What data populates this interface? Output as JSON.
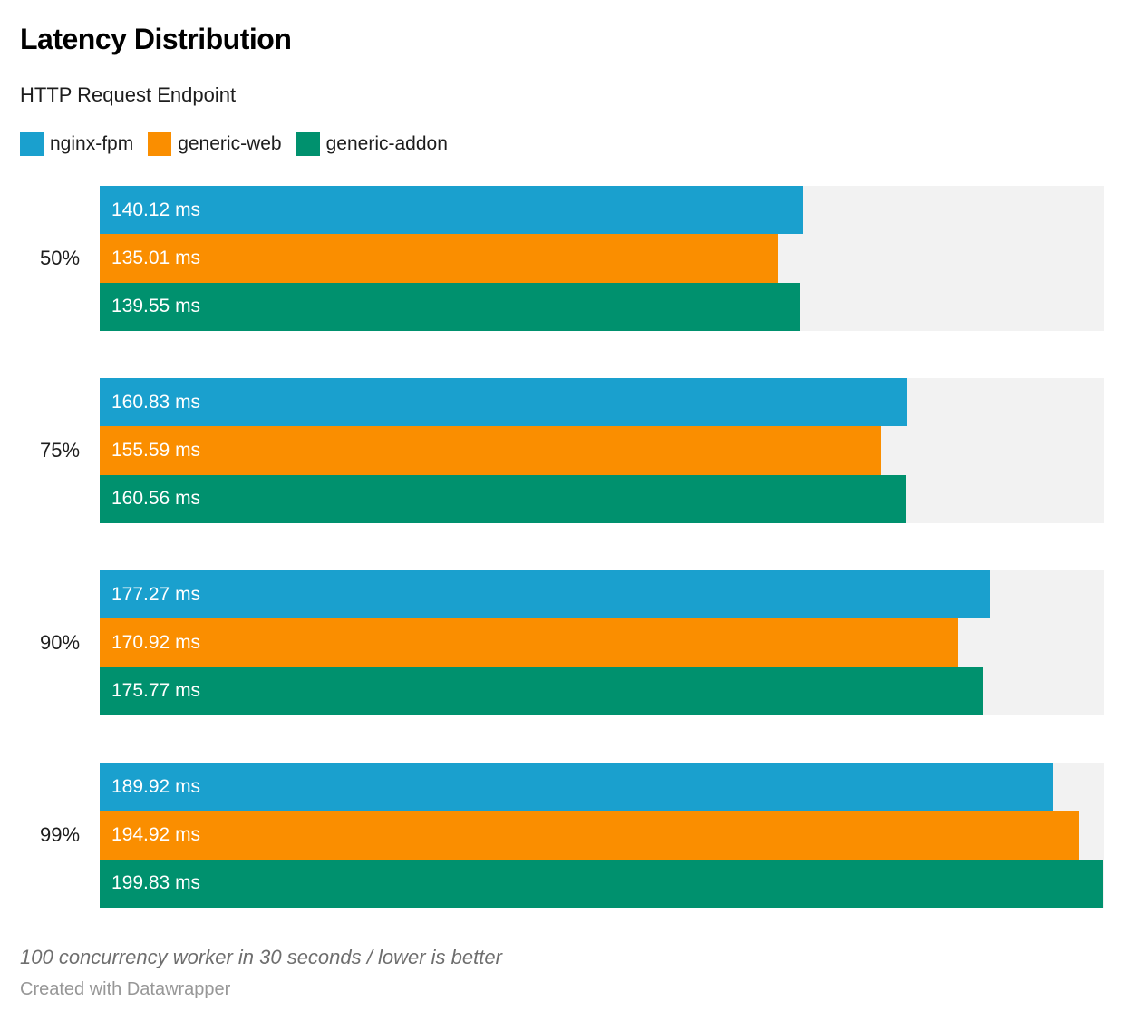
{
  "header": {
    "title": "Latency Distribution",
    "subtitle": "HTTP Request Endpoint"
  },
  "legend": {
    "items": [
      {
        "label": "nginx-fpm",
        "color": "#1aa0ce"
      },
      {
        "label": "generic-web",
        "color": "#fa8e00"
      },
      {
        "label": "generic-addon",
        "color": "#00916e"
      }
    ]
  },
  "chart_data": {
    "type": "bar",
    "orientation": "horizontal",
    "title": "Latency Distribution",
    "subtitle": "HTTP Request Endpoint",
    "unit": "ms",
    "value_axis": {
      "min": 0,
      "max": 200
    },
    "grid": false,
    "legend_position": "top",
    "track_color": "#f2f2f2",
    "categories": [
      "50%",
      "75%",
      "90%",
      "99%"
    ],
    "series": [
      {
        "name": "nginx-fpm",
        "color": "#1aa0ce",
        "values": [
          140.12,
          160.83,
          177.27,
          189.92
        ]
      },
      {
        "name": "generic-web",
        "color": "#fa8e00",
        "values": [
          135.01,
          155.59,
          170.92,
          194.92
        ]
      },
      {
        "name": "generic-addon",
        "color": "#00916e",
        "values": [
          139.55,
          160.56,
          175.77,
          199.83
        ]
      }
    ],
    "groups": [
      {
        "category": "50%",
        "bars": [
          {
            "series": "nginx-fpm",
            "value": 140.12,
            "label": "140.12 ms"
          },
          {
            "series": "generic-web",
            "value": 135.01,
            "label": "135.01 ms"
          },
          {
            "series": "generic-addon",
            "value": 139.55,
            "label": "139.55 ms"
          }
        ]
      },
      {
        "category": "75%",
        "bars": [
          {
            "series": "nginx-fpm",
            "value": 160.83,
            "label": "160.83 ms"
          },
          {
            "series": "generic-web",
            "value": 155.59,
            "label": "155.59 ms"
          },
          {
            "series": "generic-addon",
            "value": 160.56,
            "label": "160.56 ms"
          }
        ]
      },
      {
        "category": "90%",
        "bars": [
          {
            "series": "nginx-fpm",
            "value": 177.27,
            "label": "177.27 ms"
          },
          {
            "series": "generic-web",
            "value": 170.92,
            "label": "170.92 ms"
          },
          {
            "series": "generic-addon",
            "value": 175.77,
            "label": "175.77 ms"
          }
        ]
      },
      {
        "category": "99%",
        "bars": [
          {
            "series": "nginx-fpm",
            "value": 189.92,
            "label": "189.92 ms"
          },
          {
            "series": "generic-web",
            "value": 194.92,
            "label": "194.92 ms"
          },
          {
            "series": "generic-addon",
            "value": 199.83,
            "label": "199.83 ms"
          }
        ]
      }
    ]
  },
  "footer": {
    "note": "100 concurrency worker in 30 seconds / lower is better",
    "credit": "Created with Datawrapper"
  }
}
